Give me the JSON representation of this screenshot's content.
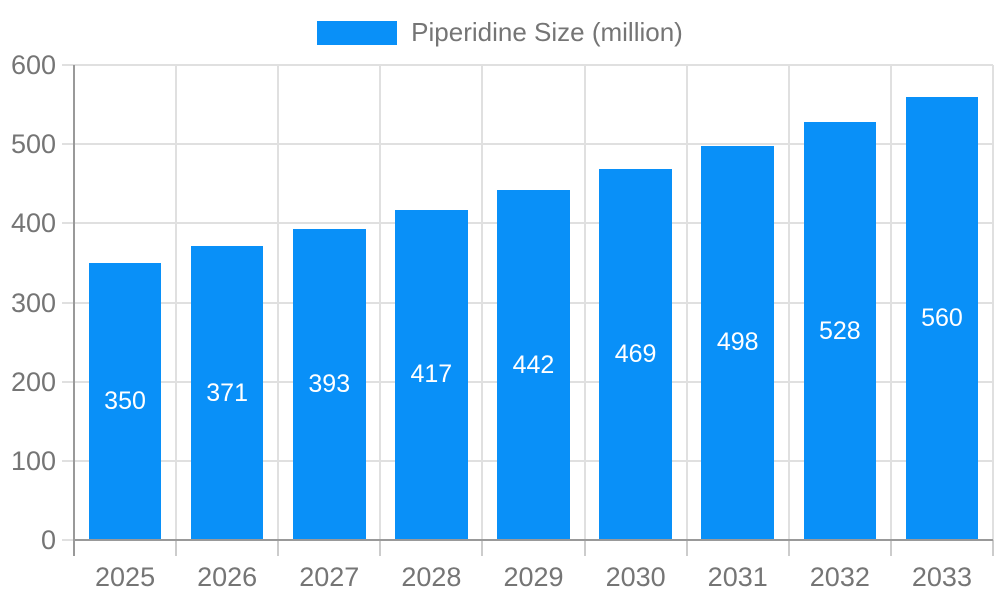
{
  "chart_data": {
    "type": "bar",
    "title": "",
    "legend": "Piperidine Size (million)",
    "categories": [
      "2025",
      "2026",
      "2027",
      "2028",
      "2029",
      "2030",
      "2031",
      "2032",
      "2033"
    ],
    "values": [
      350,
      371,
      393,
      417,
      442,
      469,
      498,
      528,
      560
    ],
    "ylim": [
      0,
      600
    ],
    "yticks": [
      0,
      100,
      200,
      300,
      400,
      500,
      600
    ],
    "xlabel": "",
    "ylabel": "",
    "grid": true,
    "legend_position": "top-center",
    "bar_color": "#0990F8",
    "colors": {
      "bar": "#0990F8",
      "grid": "#E0E0E0",
      "axis": "#999999",
      "category_tick": "#CCCCCC",
      "text": "#757575",
      "value_label": "#FFFFFF",
      "background": "#FFFFFF"
    }
  }
}
